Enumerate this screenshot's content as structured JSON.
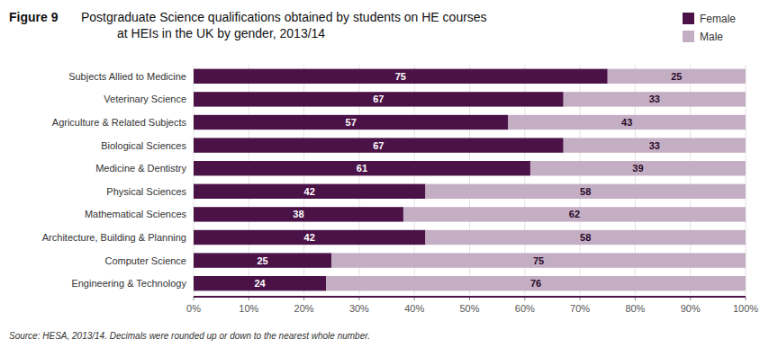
{
  "chart_data": {
    "type": "bar",
    "orientation": "horizontal",
    "stacked": true,
    "title": "Figure 9",
    "subtitle": "Postgraduate Science qualifications obtained by students on HE courses\nat HEIs in the UK by gender, 2013/14",
    "annotations": [
      "Source: HESA, 2013/14. Decimals were rounded up or down to the nearest whole number."
    ],
    "categories": [
      "Subjects Allied to Medicine",
      "Veterinary Science",
      "Agriculture & Related Subjects",
      "Biological Sciences",
      "Medicine & Dentistry",
      "Physical Sciences",
      "Mathematical Sciences",
      "Architecture, Building & Planning",
      "Computer Science",
      "Engineering & Technology"
    ],
    "series": [
      {
        "name": "Female",
        "color": "#4b1248",
        "values": [
          75,
          67,
          57,
          67,
          61,
          42,
          38,
          42,
          25,
          24
        ]
      },
      {
        "name": "Male",
        "color": "#c4aec4",
        "values": [
          25,
          33,
          43,
          33,
          39,
          58,
          62,
          58,
          75,
          76
        ]
      }
    ],
    "xlim": [
      0,
      100
    ],
    "xticks": [
      {
        "value": 0,
        "label": "0%"
      },
      {
        "value": 10,
        "label": "10%"
      },
      {
        "value": 20,
        "label": "20%"
      },
      {
        "value": 30,
        "label": "30%"
      },
      {
        "value": 40,
        "label": "40%"
      },
      {
        "value": 50,
        "label": "50%"
      },
      {
        "value": 60,
        "label": "60%"
      },
      {
        "value": 70,
        "label": "70%"
      },
      {
        "value": 80,
        "label": "80%"
      },
      {
        "value": 90,
        "label": "90%"
      },
      {
        "value": 100,
        "label": "100%"
      }
    ],
    "grid": true,
    "legend": "top-right",
    "data_labels": true
  }
}
